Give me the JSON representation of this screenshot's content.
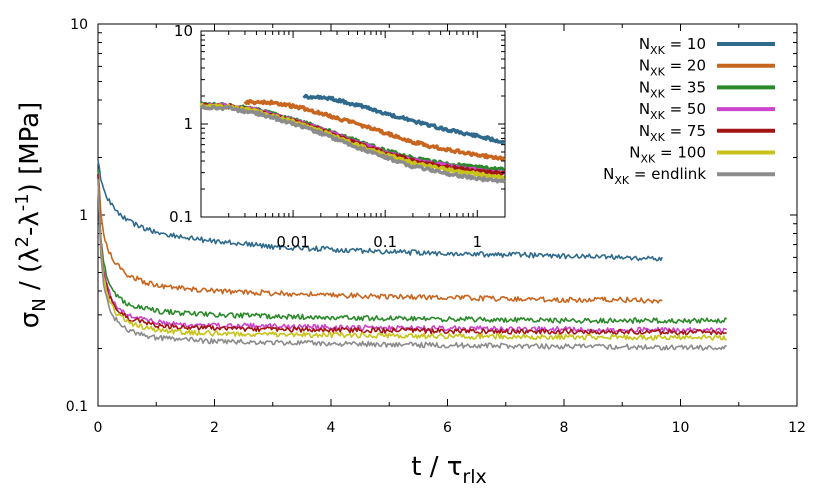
{
  "chart_data": [
    {
      "type": "line",
      "xlabel": "t / τ_rlx",
      "ylabel": "σ_N / (λ²-λ⁻¹) [MPa]",
      "x_axis": {
        "scale": "linear",
        "range": [
          0,
          12
        ],
        "ticks": [
          0,
          2,
          4,
          6,
          8,
          10,
          12
        ],
        "tick_labels": [
          "0",
          "2",
          "4",
          "6",
          "8",
          "10",
          "12"
        ]
      },
      "y_axis": {
        "scale": "log",
        "range": [
          0.1,
          10
        ],
        "ticks": [
          0.1,
          1,
          10
        ],
        "tick_labels": [
          "0.1",
          "1",
          "10"
        ]
      },
      "grid": false,
      "legend_position": "top-right",
      "series": [
        {
          "name": "N_XK = 10",
          "color": "#2f6a8d",
          "points": [
            [
              0.0,
              1.9
            ],
            [
              0.05,
              1.55
            ],
            [
              0.1,
              1.35
            ],
            [
              0.2,
              1.17
            ],
            [
              0.3,
              1.06
            ],
            [
              0.5,
              0.94
            ],
            [
              0.75,
              0.86
            ],
            [
              1.0,
              0.81
            ],
            [
              1.5,
              0.76
            ],
            [
              2.0,
              0.73
            ],
            [
              3.0,
              0.68
            ],
            [
              4.0,
              0.66
            ],
            [
              5.0,
              0.64
            ],
            [
              6.0,
              0.63
            ],
            [
              7.0,
              0.62
            ],
            [
              8.0,
              0.61
            ],
            [
              9.0,
              0.6
            ],
            [
              9.7,
              0.59
            ]
          ]
        },
        {
          "name": "N_XK = 20",
          "color": "#c8661f",
          "points": [
            [
              0.0,
              1.75
            ],
            [
              0.05,
              1.0
            ],
            [
              0.1,
              0.78
            ],
            [
              0.2,
              0.63
            ],
            [
              0.3,
              0.56
            ],
            [
              0.5,
              0.49
            ],
            [
              0.75,
              0.45
            ],
            [
              1.0,
              0.43
            ],
            [
              1.5,
              0.41
            ],
            [
              2.0,
              0.4
            ],
            [
              3.0,
              0.39
            ],
            [
              4.0,
              0.38
            ],
            [
              5.0,
              0.375
            ],
            [
              6.0,
              0.37
            ],
            [
              7.0,
              0.365
            ],
            [
              8.0,
              0.36
            ],
            [
              9.0,
              0.36
            ],
            [
              9.7,
              0.355
            ]
          ]
        },
        {
          "name": "N_XK = 35",
          "color": "#2a8a2a",
          "points": [
            [
              0.0,
              1.7
            ],
            [
              0.05,
              0.75
            ],
            [
              0.1,
              0.55
            ],
            [
              0.2,
              0.43
            ],
            [
              0.3,
              0.38
            ],
            [
              0.5,
              0.34
            ],
            [
              0.75,
              0.325
            ],
            [
              1.0,
              0.315
            ],
            [
              1.5,
              0.305
            ],
            [
              2.0,
              0.3
            ],
            [
              4.0,
              0.29
            ],
            [
              6.0,
              0.285
            ],
            [
              8.0,
              0.28
            ],
            [
              10.0,
              0.28
            ],
            [
              10.8,
              0.28
            ]
          ]
        },
        {
          "name": "N_XK = 50",
          "color": "#cc44cc",
          "points": [
            [
              0.0,
              1.65
            ],
            [
              0.05,
              0.7
            ],
            [
              0.1,
              0.5
            ],
            [
              0.2,
              0.39
            ],
            [
              0.3,
              0.34
            ],
            [
              0.5,
              0.3
            ],
            [
              0.75,
              0.285
            ],
            [
              1.0,
              0.275
            ],
            [
              1.5,
              0.268
            ],
            [
              2.0,
              0.265
            ],
            [
              4.0,
              0.258
            ],
            [
              6.0,
              0.255
            ],
            [
              8.0,
              0.252
            ],
            [
              10.0,
              0.25
            ],
            [
              10.8,
              0.25
            ]
          ]
        },
        {
          "name": "N_XK = 75",
          "color": "#a31515",
          "points": [
            [
              0.0,
              1.6
            ],
            [
              0.05,
              0.68
            ],
            [
              0.1,
              0.48
            ],
            [
              0.2,
              0.37
            ],
            [
              0.3,
              0.33
            ],
            [
              0.5,
              0.29
            ],
            [
              0.75,
              0.275
            ],
            [
              1.0,
              0.265
            ],
            [
              1.5,
              0.258
            ],
            [
              2.0,
              0.255
            ],
            [
              4.0,
              0.25
            ],
            [
              6.0,
              0.247
            ],
            [
              8.0,
              0.245
            ],
            [
              10.0,
              0.243
            ],
            [
              10.8,
              0.243
            ]
          ]
        },
        {
          "name": "N_XK = 100",
          "color": "#c8c31b",
          "points": [
            [
              0.0,
              1.55
            ],
            [
              0.05,
              0.65
            ],
            [
              0.1,
              0.46
            ],
            [
              0.2,
              0.35
            ],
            [
              0.3,
              0.31
            ],
            [
              0.5,
              0.275
            ],
            [
              0.75,
              0.26
            ],
            [
              1.0,
              0.25
            ],
            [
              1.5,
              0.243
            ],
            [
              2.0,
              0.24
            ],
            [
              4.0,
              0.235
            ],
            [
              6.0,
              0.232
            ],
            [
              8.0,
              0.23
            ],
            [
              10.0,
              0.229
            ],
            [
              10.8,
              0.228
            ]
          ]
        },
        {
          "name": "N_XK = endlink",
          "color": "#8c8c8c",
          "points": [
            [
              0.0,
              1.5
            ],
            [
              0.05,
              0.6
            ],
            [
              0.1,
              0.42
            ],
            [
              0.2,
              0.32
            ],
            [
              0.3,
              0.285
            ],
            [
              0.5,
              0.25
            ],
            [
              0.75,
              0.237
            ],
            [
              1.0,
              0.228
            ],
            [
              1.5,
              0.222
            ],
            [
              2.0,
              0.218
            ],
            [
              4.0,
              0.212
            ],
            [
              6.0,
              0.208
            ],
            [
              8.0,
              0.205
            ],
            [
              10.0,
              0.203
            ],
            [
              10.8,
              0.202
            ]
          ]
        }
      ]
    },
    {
      "type": "line",
      "inset": true,
      "x_axis": {
        "scale": "log",
        "range": [
          0.001,
          2
        ],
        "ticks": [
          0.01,
          0.1,
          1
        ],
        "tick_labels": [
          "0.01",
          "0.1",
          "1"
        ]
      },
      "y_axis": {
        "scale": "log",
        "range": [
          0.1,
          10
        ],
        "ticks": [
          0.1,
          1,
          10
        ],
        "tick_labels": [
          "0.1",
          "1",
          "10"
        ]
      },
      "grid": false,
      "series": [
        {
          "name": "N_XK = 10",
          "color": "#2f6a8d",
          "points": [
            [
              0.013,
              1.97
            ],
            [
              0.025,
              1.9
            ],
            [
              0.05,
              1.6
            ],
            [
              0.1,
              1.3
            ],
            [
              0.2,
              1.08
            ],
            [
              0.5,
              0.86
            ],
            [
              1.0,
              0.74
            ],
            [
              2.0,
              0.63
            ]
          ]
        },
        {
          "name": "N_XK = 20",
          "color": "#c8661f",
          "points": [
            [
              0.003,
              1.72
            ],
            [
              0.006,
              1.7
            ],
            [
              0.012,
              1.5
            ],
            [
              0.025,
              1.22
            ],
            [
              0.05,
              1.0
            ],
            [
              0.1,
              0.8
            ],
            [
              0.2,
              0.64
            ],
            [
              0.5,
              0.52
            ],
            [
              1.0,
              0.47
            ],
            [
              2.0,
              0.42
            ]
          ]
        },
        {
          "name": "N_XK = 35",
          "color": "#2a8a2a",
          "points": [
            [
              0.001,
              1.62
            ],
            [
              0.002,
              1.58
            ],
            [
              0.004,
              1.42
            ],
            [
              0.01,
              1.12
            ],
            [
              0.02,
              0.9
            ],
            [
              0.05,
              0.65
            ],
            [
              0.1,
              0.52
            ],
            [
              0.2,
              0.43
            ],
            [
              0.5,
              0.37
            ],
            [
              1.0,
              0.34
            ],
            [
              2.0,
              0.32
            ]
          ]
        },
        {
          "name": "N_XK = 50",
          "color": "#cc44cc",
          "points": [
            [
              0.001,
              1.6
            ],
            [
              0.002,
              1.56
            ],
            [
              0.004,
              1.4
            ],
            [
              0.01,
              1.1
            ],
            [
              0.02,
              0.88
            ],
            [
              0.05,
              0.63
            ],
            [
              0.1,
              0.5
            ],
            [
              0.2,
              0.41
            ],
            [
              0.5,
              0.35
            ],
            [
              1.0,
              0.32
            ],
            [
              2.0,
              0.3
            ]
          ]
        },
        {
          "name": "N_XK = 75",
          "color": "#a31515",
          "points": [
            [
              0.001,
              1.58
            ],
            [
              0.002,
              1.55
            ],
            [
              0.004,
              1.38
            ],
            [
              0.01,
              1.08
            ],
            [
              0.02,
              0.86
            ],
            [
              0.05,
              0.61
            ],
            [
              0.1,
              0.49
            ],
            [
              0.2,
              0.4
            ],
            [
              0.5,
              0.34
            ],
            [
              1.0,
              0.31
            ],
            [
              2.0,
              0.29
            ]
          ]
        },
        {
          "name": "N_XK = 100",
          "color": "#c8c31b",
          "points": [
            [
              0.001,
              1.56
            ],
            [
              0.002,
              1.53
            ],
            [
              0.004,
              1.36
            ],
            [
              0.01,
              1.06
            ],
            [
              0.02,
              0.84
            ],
            [
              0.05,
              0.59
            ],
            [
              0.1,
              0.47
            ],
            [
              0.2,
              0.38
            ],
            [
              0.5,
              0.32
            ],
            [
              1.0,
              0.29
            ],
            [
              2.0,
              0.27
            ]
          ]
        },
        {
          "name": "N_XK = endlink",
          "color": "#8c8c8c",
          "points": [
            [
              0.001,
              1.52
            ],
            [
              0.002,
              1.48
            ],
            [
              0.004,
              1.3
            ],
            [
              0.01,
              1.02
            ],
            [
              0.02,
              0.8
            ],
            [
              0.05,
              0.56
            ],
            [
              0.1,
              0.44
            ],
            [
              0.2,
              0.35
            ],
            [
              0.5,
              0.29
            ],
            [
              1.0,
              0.26
            ],
            [
              2.0,
              0.24
            ]
          ]
        }
      ]
    }
  ],
  "legend": [
    {
      "base": "N",
      "sub": "XK",
      "rest": " = 10",
      "color": "#2f6a8d"
    },
    {
      "base": "N",
      "sub": "XK",
      "rest": " = 20",
      "color": "#c8661f"
    },
    {
      "base": "N",
      "sub": "XK",
      "rest": " = 35",
      "color": "#2a8a2a"
    },
    {
      "base": "N",
      "sub": "XK",
      "rest": " = 50",
      "color": "#cc44cc"
    },
    {
      "base": "N",
      "sub": "XK",
      "rest": " = 75",
      "color": "#a31515"
    },
    {
      "base": "N",
      "sub": "XK",
      "rest": " = 100",
      "color": "#c8c31b"
    },
    {
      "base": "N",
      "sub": "XK",
      "rest": " = endlink",
      "color": "#8c8c8c"
    }
  ],
  "axis_titles": {
    "x": {
      "a": "t / τ",
      "sub": "rlx"
    },
    "y": {
      "a": "σ",
      "sub1": "N",
      "b": " / (λ",
      "sup1": "2",
      "c": "-λ",
      "sup2": "-1",
      "d": ") [MPa]"
    }
  }
}
